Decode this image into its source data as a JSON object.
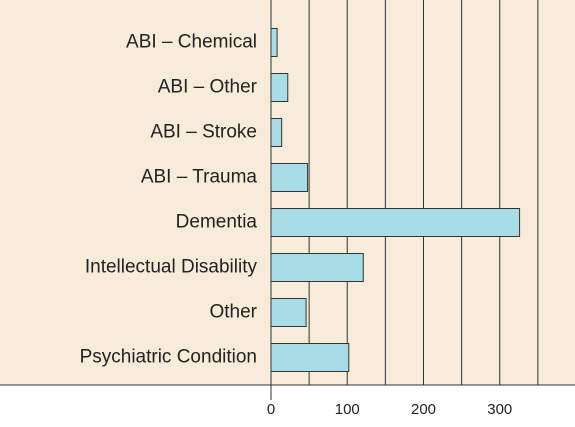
{
  "chart_data": {
    "type": "bar",
    "orientation": "horizontal",
    "categories": [
      "ABI – Chemical",
      "ABI – Other",
      "ABI – Stroke",
      "ABI – Trauma",
      "Dementia",
      "Intellectual Disability",
      "Other",
      "Psychiatric Condition"
    ],
    "values": [
      8,
      22,
      14,
      48,
      326,
      121,
      46,
      102
    ],
    "color": "#a8dde8",
    "xlim": [
      0,
      400
    ],
    "xticks": [
      0,
      100,
      200,
      300
    ],
    "minor_xticks": [
      50,
      150,
      250,
      350
    ],
    "grid": true
  }
}
